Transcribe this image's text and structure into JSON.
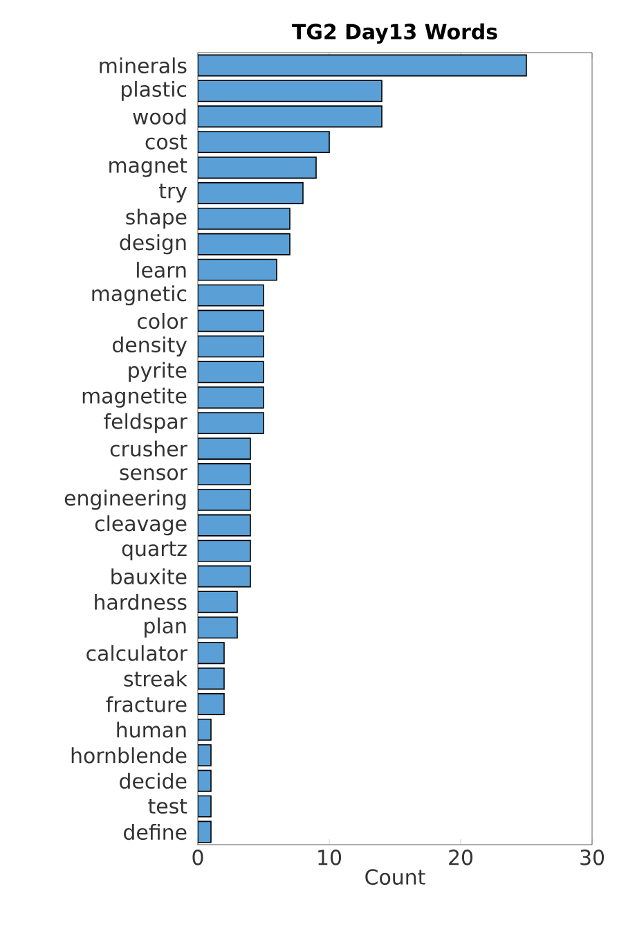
{
  "chart_data": {
    "type": "bar",
    "orientation": "horizontal",
    "title": "TG2 Day13 Words",
    "xlabel": "Count",
    "categories": [
      "minerals",
      "plastic",
      "wood",
      "cost",
      "magnet",
      "try",
      "shape",
      "design",
      "learn",
      "magnetic",
      "color",
      "density",
      "pyrite",
      "magnetite",
      "feldspar",
      "crusher",
      "sensor",
      "engineering",
      "cleavage",
      "quartz",
      "bauxite",
      "hardness",
      "plan",
      "calculator",
      "streak",
      "fracture",
      "human",
      "hornblende",
      "decide",
      "test",
      "define"
    ],
    "values": [
      25,
      14,
      14,
      10,
      9,
      8,
      7,
      7,
      6,
      5,
      5,
      5,
      5,
      5,
      5,
      4,
      4,
      4,
      4,
      4,
      4,
      3,
      3,
      2,
      2,
      2,
      1,
      1,
      1,
      1,
      1
    ],
    "color": "#5a9fd6",
    "xlim": [
      0,
      30
    ],
    "xticks": [
      0,
      10,
      20,
      30
    ],
    "grid": false
  }
}
